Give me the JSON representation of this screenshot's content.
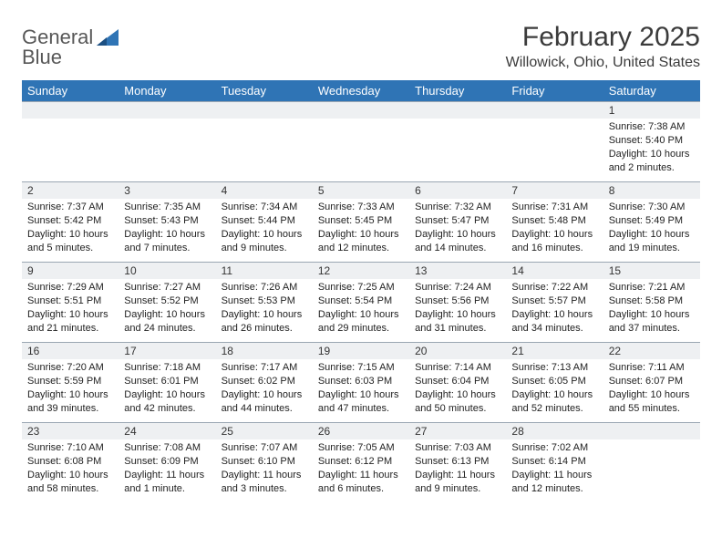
{
  "brand": {
    "word1": "General",
    "word2": "Blue"
  },
  "title": "February 2025",
  "location": "Willowick, Ohio, United States",
  "colors": {
    "header_bg": "#2f74b5",
    "header_text": "#ffffff",
    "daynum_bg": "#eef0f2",
    "cell_border": "#9aa6b2",
    "logo_gray": "#575757",
    "logo_blue": "#2f74b5",
    "text": "#222222"
  },
  "day_headers": [
    "Sunday",
    "Monday",
    "Tuesday",
    "Wednesday",
    "Thursday",
    "Friday",
    "Saturday"
  ],
  "weeks": [
    [
      {
        "n": "",
        "sr": "",
        "ss": "",
        "dl": ""
      },
      {
        "n": "",
        "sr": "",
        "ss": "",
        "dl": ""
      },
      {
        "n": "",
        "sr": "",
        "ss": "",
        "dl": ""
      },
      {
        "n": "",
        "sr": "",
        "ss": "",
        "dl": ""
      },
      {
        "n": "",
        "sr": "",
        "ss": "",
        "dl": ""
      },
      {
        "n": "",
        "sr": "",
        "ss": "",
        "dl": ""
      },
      {
        "n": "1",
        "sr": "Sunrise: 7:38 AM",
        "ss": "Sunset: 5:40 PM",
        "dl": "Daylight: 10 hours and 2 minutes."
      }
    ],
    [
      {
        "n": "2",
        "sr": "Sunrise: 7:37 AM",
        "ss": "Sunset: 5:42 PM",
        "dl": "Daylight: 10 hours and 5 minutes."
      },
      {
        "n": "3",
        "sr": "Sunrise: 7:35 AM",
        "ss": "Sunset: 5:43 PM",
        "dl": "Daylight: 10 hours and 7 minutes."
      },
      {
        "n": "4",
        "sr": "Sunrise: 7:34 AM",
        "ss": "Sunset: 5:44 PM",
        "dl": "Daylight: 10 hours and 9 minutes."
      },
      {
        "n": "5",
        "sr": "Sunrise: 7:33 AM",
        "ss": "Sunset: 5:45 PM",
        "dl": "Daylight: 10 hours and 12 minutes."
      },
      {
        "n": "6",
        "sr": "Sunrise: 7:32 AM",
        "ss": "Sunset: 5:47 PM",
        "dl": "Daylight: 10 hours and 14 minutes."
      },
      {
        "n": "7",
        "sr": "Sunrise: 7:31 AM",
        "ss": "Sunset: 5:48 PM",
        "dl": "Daylight: 10 hours and 16 minutes."
      },
      {
        "n": "8",
        "sr": "Sunrise: 7:30 AM",
        "ss": "Sunset: 5:49 PM",
        "dl": "Daylight: 10 hours and 19 minutes."
      }
    ],
    [
      {
        "n": "9",
        "sr": "Sunrise: 7:29 AM",
        "ss": "Sunset: 5:51 PM",
        "dl": "Daylight: 10 hours and 21 minutes."
      },
      {
        "n": "10",
        "sr": "Sunrise: 7:27 AM",
        "ss": "Sunset: 5:52 PM",
        "dl": "Daylight: 10 hours and 24 minutes."
      },
      {
        "n": "11",
        "sr": "Sunrise: 7:26 AM",
        "ss": "Sunset: 5:53 PM",
        "dl": "Daylight: 10 hours and 26 minutes."
      },
      {
        "n": "12",
        "sr": "Sunrise: 7:25 AM",
        "ss": "Sunset: 5:54 PM",
        "dl": "Daylight: 10 hours and 29 minutes."
      },
      {
        "n": "13",
        "sr": "Sunrise: 7:24 AM",
        "ss": "Sunset: 5:56 PM",
        "dl": "Daylight: 10 hours and 31 minutes."
      },
      {
        "n": "14",
        "sr": "Sunrise: 7:22 AM",
        "ss": "Sunset: 5:57 PM",
        "dl": "Daylight: 10 hours and 34 minutes."
      },
      {
        "n": "15",
        "sr": "Sunrise: 7:21 AM",
        "ss": "Sunset: 5:58 PM",
        "dl": "Daylight: 10 hours and 37 minutes."
      }
    ],
    [
      {
        "n": "16",
        "sr": "Sunrise: 7:20 AM",
        "ss": "Sunset: 5:59 PM",
        "dl": "Daylight: 10 hours and 39 minutes."
      },
      {
        "n": "17",
        "sr": "Sunrise: 7:18 AM",
        "ss": "Sunset: 6:01 PM",
        "dl": "Daylight: 10 hours and 42 minutes."
      },
      {
        "n": "18",
        "sr": "Sunrise: 7:17 AM",
        "ss": "Sunset: 6:02 PM",
        "dl": "Daylight: 10 hours and 44 minutes."
      },
      {
        "n": "19",
        "sr": "Sunrise: 7:15 AM",
        "ss": "Sunset: 6:03 PM",
        "dl": "Daylight: 10 hours and 47 minutes."
      },
      {
        "n": "20",
        "sr": "Sunrise: 7:14 AM",
        "ss": "Sunset: 6:04 PM",
        "dl": "Daylight: 10 hours and 50 minutes."
      },
      {
        "n": "21",
        "sr": "Sunrise: 7:13 AM",
        "ss": "Sunset: 6:05 PM",
        "dl": "Daylight: 10 hours and 52 minutes."
      },
      {
        "n": "22",
        "sr": "Sunrise: 7:11 AM",
        "ss": "Sunset: 6:07 PM",
        "dl": "Daylight: 10 hours and 55 minutes."
      }
    ],
    [
      {
        "n": "23",
        "sr": "Sunrise: 7:10 AM",
        "ss": "Sunset: 6:08 PM",
        "dl": "Daylight: 10 hours and 58 minutes."
      },
      {
        "n": "24",
        "sr": "Sunrise: 7:08 AM",
        "ss": "Sunset: 6:09 PM",
        "dl": "Daylight: 11 hours and 1 minute."
      },
      {
        "n": "25",
        "sr": "Sunrise: 7:07 AM",
        "ss": "Sunset: 6:10 PM",
        "dl": "Daylight: 11 hours and 3 minutes."
      },
      {
        "n": "26",
        "sr": "Sunrise: 7:05 AM",
        "ss": "Sunset: 6:12 PM",
        "dl": "Daylight: 11 hours and 6 minutes."
      },
      {
        "n": "27",
        "sr": "Sunrise: 7:03 AM",
        "ss": "Sunset: 6:13 PM",
        "dl": "Daylight: 11 hours and 9 minutes."
      },
      {
        "n": "28",
        "sr": "Sunrise: 7:02 AM",
        "ss": "Sunset: 6:14 PM",
        "dl": "Daylight: 11 hours and 12 minutes."
      },
      {
        "n": "",
        "sr": "",
        "ss": "",
        "dl": ""
      }
    ]
  ]
}
